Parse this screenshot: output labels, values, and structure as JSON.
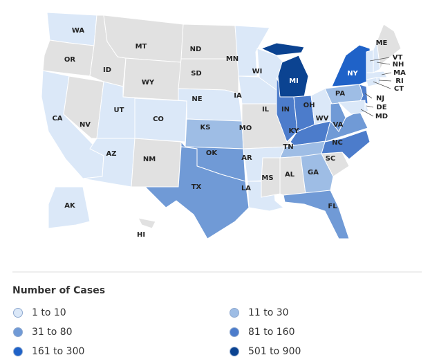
{
  "map": {
    "states": [
      {
        "abbr": "WA",
        "color": "#dbe8f8"
      },
      {
        "abbr": "OR",
        "color": "#e1e1e1"
      },
      {
        "abbr": "CA",
        "color": "#dbe8f8"
      },
      {
        "abbr": "NV",
        "color": "#e1e1e1"
      },
      {
        "abbr": "ID",
        "color": "#e1e1e1"
      },
      {
        "abbr": "MT",
        "color": "#e1e1e1"
      },
      {
        "abbr": "WY",
        "color": "#e1e1e1"
      },
      {
        "abbr": "UT",
        "color": "#dbe8f8"
      },
      {
        "abbr": "AZ",
        "color": "#dbe8f8"
      },
      {
        "abbr": "CO",
        "color": "#dbe8f8"
      },
      {
        "abbr": "NM",
        "color": "#e1e1e1"
      },
      {
        "abbr": "ND",
        "color": "#e1e1e1"
      },
      {
        "abbr": "SD",
        "color": "#e1e1e1"
      },
      {
        "abbr": "NE",
        "color": "#dbe8f8"
      },
      {
        "abbr": "KS",
        "color": "#9ebde5"
      },
      {
        "abbr": "OK",
        "color": "#709ad6"
      },
      {
        "abbr": "TX",
        "color": "#709ad6"
      },
      {
        "abbr": "MN",
        "color": "#dbe8f8"
      },
      {
        "abbr": "IA",
        "color": "#dbe8f8"
      },
      {
        "abbr": "MO",
        "color": "#e1e1e1"
      },
      {
        "abbr": "AR",
        "color": "#dbe8f8"
      },
      {
        "abbr": "LA",
        "color": "#dbe8f8"
      },
      {
        "abbr": "WI",
        "color": "#dbe8f8"
      },
      {
        "abbr": "IL",
        "color": "#4c7ccb"
      },
      {
        "abbr": "MI",
        "color": "#0b4391"
      },
      {
        "abbr": "IN",
        "color": "#4c7ccb"
      },
      {
        "abbr": "OH",
        "color": "#dbe8f8"
      },
      {
        "abbr": "KY",
        "color": "#4c7ccb"
      },
      {
        "abbr": "TN",
        "color": "#9ebde5"
      },
      {
        "abbr": "MS",
        "color": "#e1e1e1"
      },
      {
        "abbr": "AL",
        "color": "#e1e1e1"
      },
      {
        "abbr": "GA",
        "color": "#9ebde5"
      },
      {
        "abbr": "FL",
        "color": "#709ad6"
      },
      {
        "abbr": "SC",
        "color": "#e1e1e1"
      },
      {
        "abbr": "NC",
        "color": "#4c7ccb"
      },
      {
        "abbr": "VA",
        "color": "#709ad6"
      },
      {
        "abbr": "WV",
        "color": "#709ad6"
      },
      {
        "abbr": "PA",
        "color": "#9ebde5"
      },
      {
        "abbr": "NY",
        "color": "#1f62c8"
      },
      {
        "abbr": "NJ",
        "color": "#4c7ccb"
      },
      {
        "abbr": "DE",
        "color": "#dbe8f8"
      },
      {
        "abbr": "MD",
        "color": "#dbe8f8"
      },
      {
        "abbr": "CT",
        "color": "#dbe8f8"
      },
      {
        "abbr": "RI",
        "color": "#dbe8f8"
      },
      {
        "abbr": "MA",
        "color": "#dbe8f8"
      },
      {
        "abbr": "VT",
        "color": "#dbe8f8"
      },
      {
        "abbr": "NH",
        "color": "#dbe8f8"
      },
      {
        "abbr": "ME",
        "color": "#e1e1e1"
      },
      {
        "abbr": "AK",
        "color": "#dbe8f8"
      },
      {
        "abbr": "HI",
        "color": "#e1e1e1"
      }
    ]
  },
  "legend": {
    "title": "Number of Cases",
    "items": [
      {
        "label": "1 to 10",
        "color": "#dbe8f8"
      },
      {
        "label": "11 to 30",
        "color": "#9ebde5"
      },
      {
        "label": "31 to 80",
        "color": "#709ad6"
      },
      {
        "label": "81 to 160",
        "color": "#4c7ccb"
      },
      {
        "label": "161 to 300",
        "color": "#1f62c8"
      },
      {
        "label": "501 to 900",
        "color": "#0b4391"
      }
    ]
  }
}
